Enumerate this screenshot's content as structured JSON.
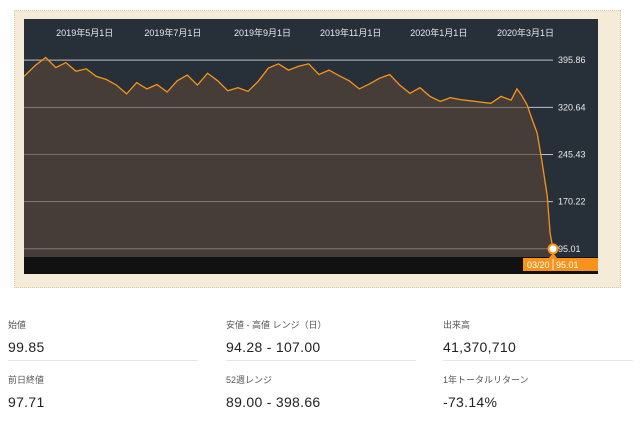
{
  "chart_data": {
    "type": "area",
    "x_tick_labels": [
      "2019年5月1日",
      "2019年7月1日",
      "2019年9月1日",
      "2019年11月1日",
      "2020年1月1日",
      "2020年3月1日"
    ],
    "y_ticks": [
      395.86,
      320.64,
      245.43,
      170.22,
      95.01
    ],
    "y_tick_labels": [
      "395.86",
      "320.64",
      "245.43",
      "170.22",
      "95.01"
    ],
    "ylim": [
      82,
      420
    ],
    "x_start": "2019-03-20",
    "x_end": "2020-03-20",
    "series": [
      {
        "x": [
          "2019-03-20",
          "2019-03-28",
          "2019-04-04",
          "2019-04-11",
          "2019-04-18",
          "2019-04-25",
          "2019-05-02",
          "2019-05-09",
          "2019-05-16",
          "2019-05-23",
          "2019-05-30",
          "2019-06-06",
          "2019-06-13",
          "2019-06-20",
          "2019-06-27",
          "2019-07-04",
          "2019-07-11",
          "2019-07-18",
          "2019-07-25",
          "2019-08-01",
          "2019-08-08",
          "2019-08-15",
          "2019-08-22",
          "2019-08-29",
          "2019-09-05",
          "2019-09-12",
          "2019-09-19",
          "2019-09-26",
          "2019-10-03",
          "2019-10-10",
          "2019-10-17",
          "2019-10-24",
          "2019-10-31",
          "2019-11-07",
          "2019-11-14",
          "2019-11-21",
          "2019-11-28",
          "2019-12-05",
          "2019-12-12",
          "2019-12-19",
          "2019-12-26",
          "2020-01-02",
          "2020-01-09",
          "2020-01-16",
          "2020-01-23",
          "2020-01-30",
          "2020-02-06",
          "2020-02-13",
          "2020-02-20",
          "2020-02-24",
          "2020-02-27",
          "2020-03-02",
          "2020-03-05",
          "2020-03-09",
          "2020-03-12",
          "2020-03-16",
          "2020-03-18",
          "2020-03-20"
        ],
        "values": [
          370,
          388,
          400,
          384,
          392,
          378,
          382,
          370,
          365,
          356,
          342,
          360,
          350,
          357,
          345,
          363,
          372,
          356,
          375,
          363,
          347,
          352,
          346,
          362,
          383,
          390,
          380,
          386,
          390,
          373,
          380,
          371,
          363,
          350,
          358,
          367,
          373,
          356,
          343,
          352,
          338,
          330,
          336,
          333,
          331,
          329,
          327,
          338,
          332,
          350,
          341,
          325,
          305,
          280,
          240,
          180,
          120,
          95.01
        ]
      }
    ],
    "current_value_label": "95.01",
    "current_date_label": "03/20",
    "colors": {
      "line": "#f7931a",
      "area": "#4b3f38",
      "background": "#273039",
      "grid": "#bfbfbf",
      "axis_text": "#e8e8e8",
      "frame": "#f4ecd8",
      "badge": "#f7931a"
    }
  },
  "stats": [
    {
      "label": "始値",
      "value": "99.85"
    },
    {
      "label": "安値 - 高値 レンジ（日）",
      "value": "94.28 - 107.00"
    },
    {
      "label": "出来高",
      "value": "41,370,710"
    },
    {
      "label": "前日終値",
      "value": "97.71"
    },
    {
      "label": "52週レンジ",
      "value": "89.00 - 398.66"
    },
    {
      "label": "1年トータルリターン",
      "value": "-73.14%"
    }
  ]
}
